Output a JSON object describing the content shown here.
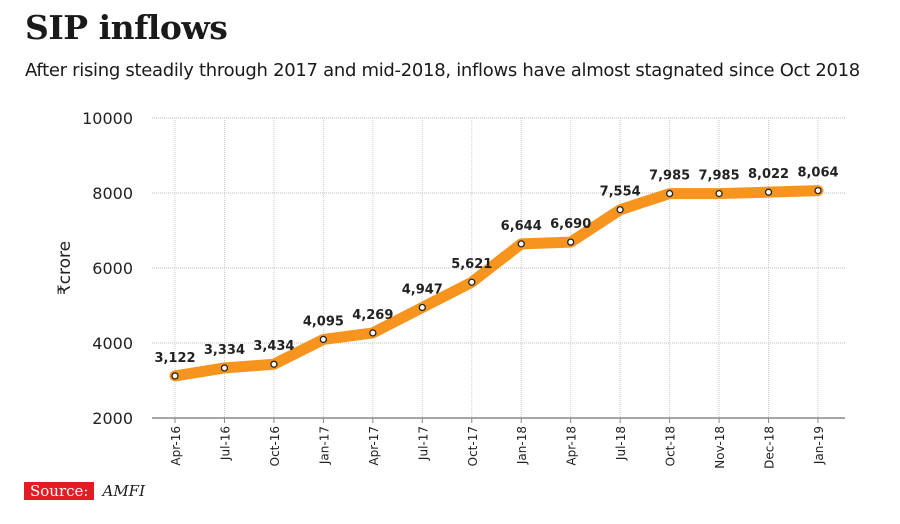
{
  "title": "SIP inflows",
  "subtitle": "After rising steadily through 2017 and mid-2018, inflows have almost stagnated since Oct 2018",
  "source_label": "Source:",
  "source_value": "AMFI",
  "colors": {
    "line": "#f7941d",
    "source_bg": "#e31b23",
    "grid": "#cccccc"
  },
  "chart_data": {
    "type": "line",
    "title": "SIP inflows",
    "xlabel": "",
    "ylabel": "₹crore",
    "ylim": [
      2000,
      10000
    ],
    "yticks": [
      2000,
      4000,
      6000,
      8000,
      10000
    ],
    "grid": true,
    "categories": [
      "Apr-16",
      "Jul-16",
      "Oct-16",
      "Jan-17",
      "Apr-17",
      "Jul-17",
      "Oct-17",
      "Jan-18",
      "Apr-18",
      "Jul-18",
      "Oct-18",
      "Nov-18",
      "Dec-18",
      "Jan-19"
    ],
    "values": [
      3122,
      3334,
      3434,
      4095,
      4269,
      4947,
      5621,
      6644,
      6690,
      7554,
      7985,
      7985,
      8022,
      8064
    ],
    "labels": [
      "3,122",
      "3,334",
      "3,434",
      "4,095",
      "4,269",
      "4,947",
      "5,621",
      "6,644",
      "6,690",
      "7,554",
      "7,985",
      "7,985",
      "8,022",
      "8,064"
    ]
  }
}
